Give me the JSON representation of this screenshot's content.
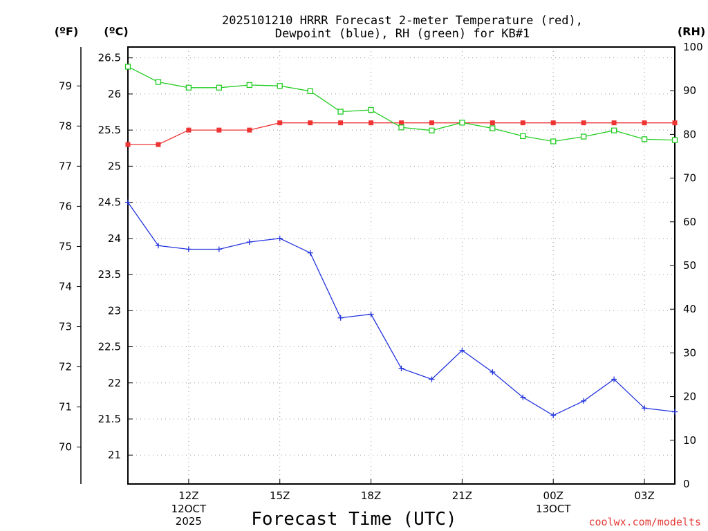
{
  "chart_data": {
    "type": "line",
    "title": "2025101210 HRRR Forecast 2-meter Temperature (red),",
    "subtitle": "Dewpoint (blue), RH (green) for KB#1",
    "xlabel": "Forecast Time (UTC)",
    "credit": "coolwx.com/modelts",
    "units": {
      "fahrenheit": "(ºF)",
      "celsius": "(ºC)",
      "rh": "(RH)"
    },
    "x_hours": [
      10,
      11,
      12,
      13,
      14,
      15,
      16,
      17,
      18,
      19,
      20,
      21,
      22,
      23,
      24,
      25,
      26,
      27,
      28
    ],
    "xlim": [
      10,
      28
    ],
    "x_ticks": [
      {
        "hour": 12,
        "label": "12Z",
        "date": "12OCT",
        "year": "2025"
      },
      {
        "hour": 15,
        "label": "15Z",
        "date": "",
        "year": ""
      },
      {
        "hour": 18,
        "label": "18Z",
        "date": "",
        "year": ""
      },
      {
        "hour": 21,
        "label": "21Z",
        "date": "",
        "year": ""
      },
      {
        "hour": 24,
        "label": "00Z",
        "date": "13OCT",
        "year": ""
      },
      {
        "hour": 27,
        "label": "03Z",
        "date": "",
        "year": ""
      }
    ],
    "ylim_celsius": [
      20.6,
      26.65
    ],
    "celsius_ticks": [
      "21",
      "21.5",
      "22",
      "22.5",
      "23",
      "23.5",
      "24",
      "24.5",
      "25",
      "25.5",
      "26",
      "26.5"
    ],
    "fahrenheit_ticks": [
      "70",
      "71",
      "72",
      "73",
      "74",
      "75",
      "76",
      "77",
      "78",
      "79"
    ],
    "ylim_rh": [
      0,
      100
    ],
    "rh_ticks": [
      "0",
      "10",
      "20",
      "30",
      "40",
      "50",
      "60",
      "70",
      "80",
      "90",
      "100"
    ],
    "series": [
      {
        "name": "Temperature",
        "axis": "celsius",
        "color": "#ee3333",
        "marker": "filled-square",
        "values": [
          25.3,
          25.3,
          25.5,
          25.5,
          25.5,
          25.6,
          25.6,
          25.6,
          25.6,
          25.6,
          25.6,
          25.6,
          25.6,
          25.6,
          25.6,
          25.6,
          25.6,
          25.6,
          25.6
        ]
      },
      {
        "name": "Dewpoint",
        "axis": "celsius",
        "color": "#2233dd",
        "marker": "plus",
        "values": [
          24.5,
          23.9,
          23.85,
          23.85,
          23.95,
          24.0,
          23.8,
          22.9,
          22.95,
          22.2,
          22.05,
          22.45,
          22.15,
          21.8,
          21.55,
          21.75,
          22.05,
          21.65,
          21.6
        ]
      },
      {
        "name": "RH",
        "axis": "rh",
        "color": "#22cc22",
        "marker": "open-square",
        "values": [
          95.5,
          92,
          90.7,
          90.7,
          91.3,
          91.1,
          89.9,
          85.2,
          85.6,
          81.6,
          80.9,
          82.7,
          81.4,
          79.6,
          78.4,
          79.5,
          80.9,
          78.9,
          78.7
        ]
      }
    ]
  }
}
